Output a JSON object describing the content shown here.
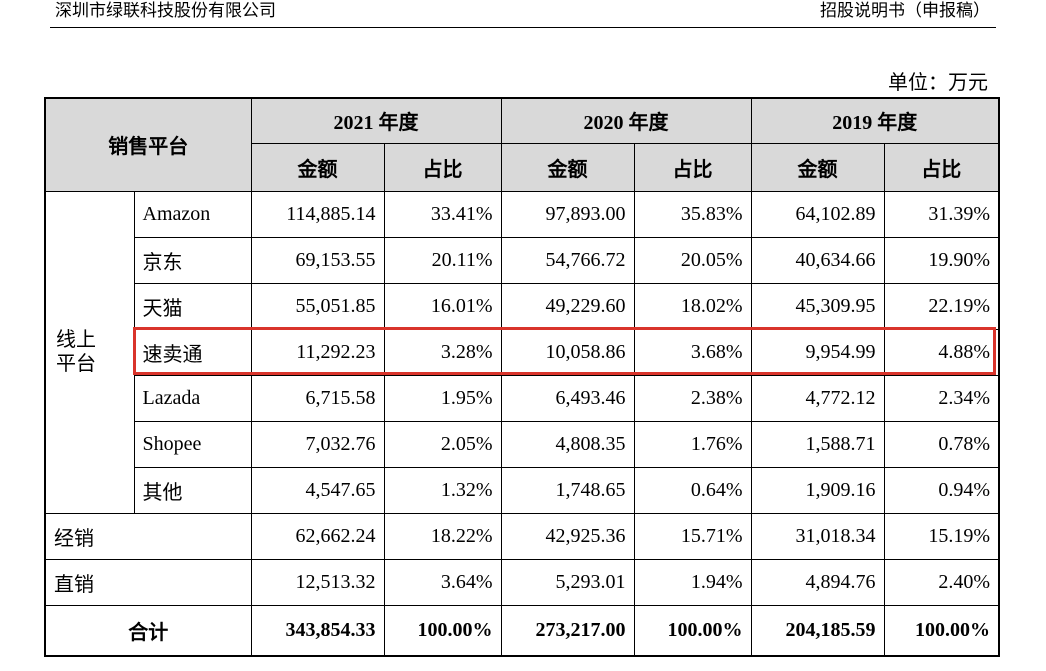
{
  "header": {
    "company": "深圳市绿联科技股份有限公司",
    "document": "招股说明书（申报稿）"
  },
  "unit": "单位：万元",
  "table": {
    "corner": "销售平台",
    "years": [
      "2021 年度",
      "2020 年度",
      "2019 年度"
    ],
    "subheaders": [
      "金额",
      "占比",
      "金额",
      "占比",
      "金额",
      "占比"
    ],
    "online_group": "线上平台",
    "online_rows": [
      {
        "label": "Amazon",
        "cells": [
          "114,885.14",
          "33.41%",
          "97,893.00",
          "35.83%",
          "64,102.89",
          "31.39%"
        ]
      },
      {
        "label": "京东",
        "cells": [
          "69,153.55",
          "20.11%",
          "54,766.72",
          "20.05%",
          "40,634.66",
          "19.90%"
        ]
      },
      {
        "label": "天猫",
        "cells": [
          "55,051.85",
          "16.01%",
          "49,229.60",
          "18.02%",
          "45,309.95",
          "22.19%"
        ]
      },
      {
        "label": "速卖通",
        "cells": [
          "11,292.23",
          "3.28%",
          "10,058.86",
          "3.68%",
          "9,954.99",
          "4.88%"
        ]
      },
      {
        "label": "Lazada",
        "cells": [
          "6,715.58",
          "1.95%",
          "6,493.46",
          "2.38%",
          "4,772.12",
          "2.34%"
        ]
      },
      {
        "label": "Shopee",
        "cells": [
          "7,032.76",
          "2.05%",
          "4,808.35",
          "1.76%",
          "1,588.71",
          "0.78%"
        ]
      },
      {
        "label": "其他",
        "cells": [
          "4,547.65",
          "1.32%",
          "1,748.65",
          "0.64%",
          "1,909.16",
          "0.94%"
        ]
      }
    ],
    "other_rows": [
      {
        "label": "经销",
        "cells": [
          "62,662.24",
          "18.22%",
          "42,925.36",
          "15.71%",
          "31,018.34",
          "15.19%"
        ]
      },
      {
        "label": "直销",
        "cells": [
          "12,513.32",
          "3.64%",
          "5,293.01",
          "1.94%",
          "4,894.76",
          "2.40%"
        ]
      }
    ],
    "total": {
      "label": "合计",
      "cells": [
        "343,854.33",
        "100.00%",
        "273,217.00",
        "100.00%",
        "204,185.59",
        "100.00%"
      ]
    }
  }
}
